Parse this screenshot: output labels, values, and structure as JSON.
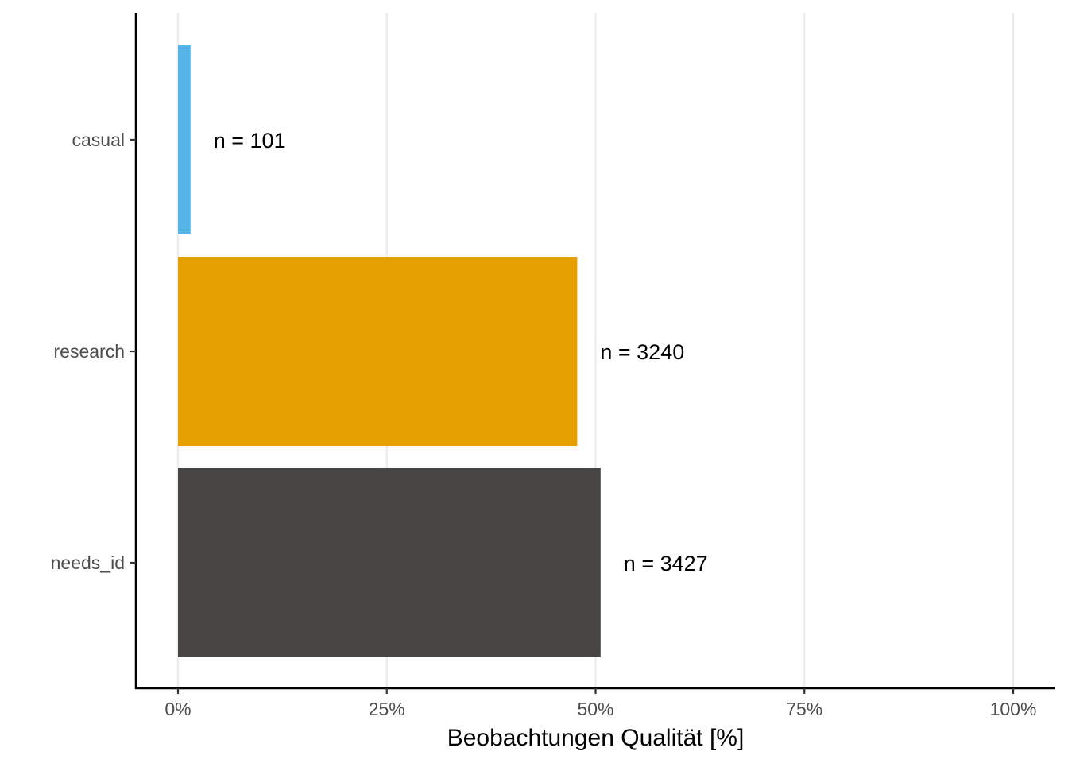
{
  "chart_data": {
    "type": "bar",
    "orientation": "horizontal",
    "categories": [
      "casual",
      "research",
      "needs_id"
    ],
    "values": [
      1.5,
      47.8,
      50.6
    ],
    "bar_labels": [
      "n = 101",
      "n = 3240",
      "n = 3427"
    ],
    "colors": [
      "#56B4E9",
      "#E69F00",
      "#464543"
    ],
    "title": "",
    "xlabel": "Beobachtungen Qualität [%]",
    "ylabel": "",
    "xlim": [
      0,
      100
    ],
    "x_ticks": [
      0,
      25,
      50,
      75,
      100
    ],
    "x_tick_labels": [
      "0%",
      "25%",
      "50%",
      "75%",
      "100%"
    ],
    "grid": "vertical-major",
    "legend": "none"
  }
}
